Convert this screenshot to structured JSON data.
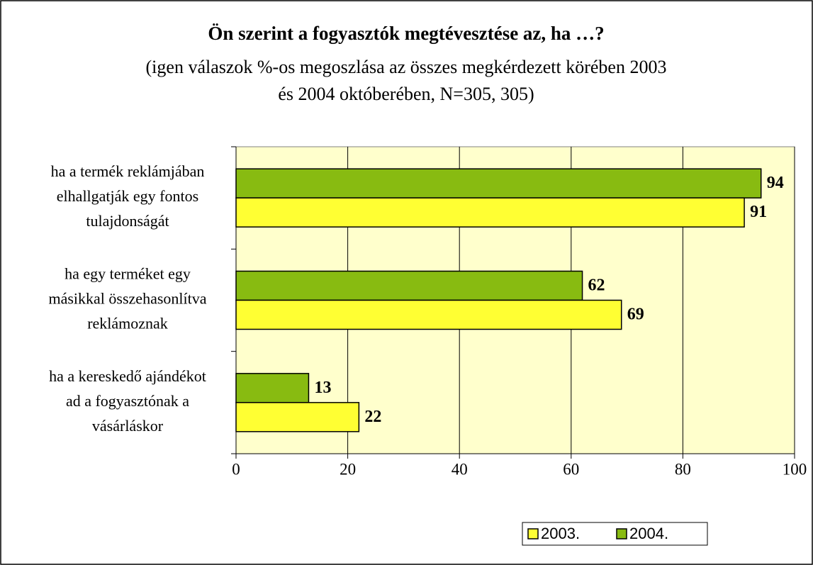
{
  "chart_data": {
    "type": "hbar",
    "title": "Ön szerint a fogyasztók megtévesztése az, ha …?",
    "subtitle": [
      "(igen válaszok %-os megoszlása az összes megkérdezett körében 2003",
      "és 2004 októberében, N=305, 305)"
    ],
    "categories": [
      [
        "ha a termék reklámjában",
        "elhallgatják egy fontos",
        "tulajdonságát"
      ],
      [
        "ha egy terméket egy",
        "másikkal összehasonlítva",
        "reklámoznak"
      ],
      [
        "ha a kereskedő ajándékot",
        "ad a fogyasztónak a",
        "vásárláskor"
      ]
    ],
    "series": [
      {
        "name": "2003.",
        "color": "#ffff33",
        "values": [
          91,
          69,
          22
        ]
      },
      {
        "name": "2004.",
        "color": "#88bb11",
        "values": [
          94,
          62,
          13
        ]
      }
    ],
    "xlim": [
      0,
      100
    ],
    "xticks": [
      0,
      20,
      40,
      60,
      80,
      100
    ],
    "grid": true,
    "plot_background": "#ffffcc",
    "legend": "bottom-right"
  }
}
